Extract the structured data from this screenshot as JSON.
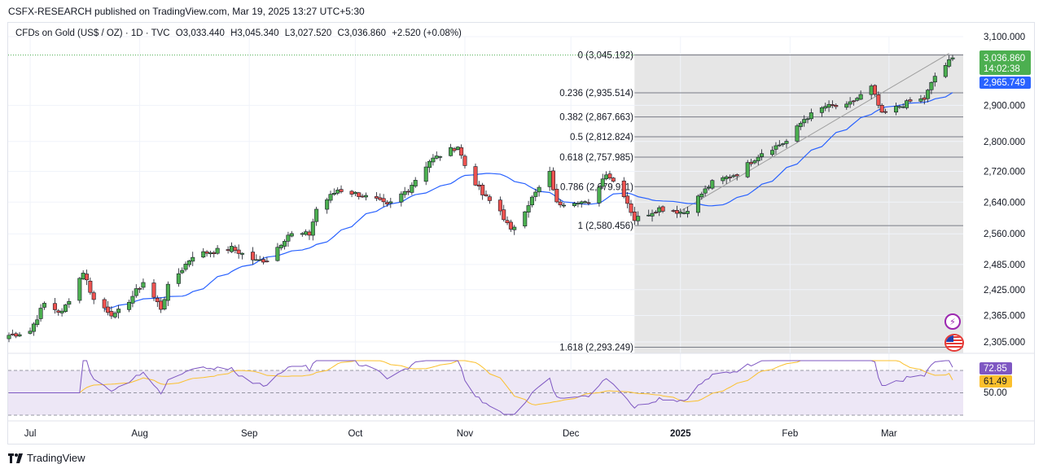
{
  "header": {
    "publisher": "CSFX-RESEARCH published on TradingView.com, Mar 19, 2025 13:27 UTC+5:30"
  },
  "legend": {
    "symbol": "CFDs on Gold (US$ / OZ) · 1D · TVC",
    "open": "O3,033.440",
    "high": "H3,045.340",
    "low": "L3,027.520",
    "close": "C3,036.860",
    "change": "+2.520 (+0.08%)"
  },
  "footer": {
    "brand": "TradingView"
  },
  "colors": {
    "up": "#4caf50",
    "down": "#ef5350",
    "ma": "#2962ff",
    "rsi": "#7e57c2",
    "rsi_ma": "#fbc02d",
    "fib": "#787b86",
    "fib_zone": "#e6e6e6",
    "rsi_band": "#ede7f6"
  },
  "icons": [
    "flash-icon",
    "us-flag-icon",
    "tradingview-logo-icon"
  ],
  "chart_data": {
    "type": "candlestick",
    "symbol": "CFDs on Gold (US$ / OZ)",
    "timeframe": "1D",
    "x_labels": [
      "Jul",
      "Aug",
      "Sep",
      "Oct",
      "Nov",
      "Dec",
      "2025",
      "Feb",
      "Mar"
    ],
    "y_ticks": [
      "3,100.000",
      "2,900.000",
      "2,800.000",
      "2,720.000",
      "2,640.000",
      "2,560.000",
      "2,485.000",
      "2,425.000",
      "2,365.000",
      "2,305.000"
    ],
    "y_tick_values": [
      3100,
      2900,
      2800,
      2720,
      2640,
      2560,
      2485,
      2425,
      2365,
      2305
    ],
    "price_labels": {
      "last_price": "3,036.860",
      "countdown": "14:02:38",
      "ma_value": "2,965.749"
    },
    "fibonacci": [
      {
        "level": "0",
        "price": "3,045.192",
        "value": 3045.192
      },
      {
        "level": "0.236",
        "price": "2,935.514",
        "value": 2935.514
      },
      {
        "level": "0.382",
        "price": "2,867.663",
        "value": 2867.663
      },
      {
        "level": "0.5",
        "price": "2,812.824",
        "value": 2812.824
      },
      {
        "level": "0.618",
        "price": "2,757.985",
        "value": 2757.985
      },
      {
        "level": "0.786",
        "price": "2,679.911",
        "value": 2679.911
      },
      {
        "level": "1",
        "price": "2,580.456",
        "value": 2580.456
      },
      {
        "level": "1.618",
        "price": "2,293.249",
        "value": 2293.249
      }
    ],
    "close_path": [
      [
        "2024-06-25",
        2320
      ],
      [
        "2024-07-01",
        2330
      ],
      [
        "2024-07-05",
        2392
      ],
      [
        "2024-07-10",
        2371
      ],
      [
        "2024-07-16",
        2468
      ],
      [
        "2024-07-19",
        2401
      ],
      [
        "2024-07-25",
        2364
      ],
      [
        "2024-07-30",
        2410
      ],
      [
        "2024-08-02",
        2443
      ],
      [
        "2024-08-07",
        2382
      ],
      [
        "2024-08-09",
        2431
      ],
      [
        "2024-08-16",
        2507
      ],
      [
        "2024-08-20",
        2514
      ],
      [
        "2024-08-27",
        2524
      ],
      [
        "2024-09-03",
        2493
      ],
      [
        "2024-09-06",
        2497
      ],
      [
        "2024-09-12",
        2558
      ],
      [
        "2024-09-18",
        2559
      ],
      [
        "2024-09-20",
        2622
      ],
      [
        "2024-09-26",
        2672
      ],
      [
        "2024-10-01",
        2662
      ],
      [
        "2024-10-07",
        2645
      ],
      [
        "2024-10-10",
        2630
      ],
      [
        "2024-10-16",
        2674
      ],
      [
        "2024-10-22",
        2748
      ],
      [
        "2024-10-30",
        2787
      ],
      [
        "2024-11-01",
        2736
      ],
      [
        "2024-11-06",
        2659
      ],
      [
        "2024-11-11",
        2618
      ],
      [
        "2024-11-14",
        2566
      ],
      [
        "2024-11-20",
        2650
      ],
      [
        "2024-11-25",
        2715
      ],
      [
        "2024-11-27",
        2636
      ],
      [
        "2024-12-03",
        2644
      ],
      [
        "2024-12-06",
        2633
      ],
      [
        "2024-12-11",
        2717
      ],
      [
        "2024-12-16",
        2660
      ],
      [
        "2024-12-19",
        2596
      ],
      [
        "2024-12-26",
        2624
      ],
      [
        "2025-01-02",
        2614
      ],
      [
        "2025-01-10",
        2690
      ],
      [
        "2025-01-17",
        2714
      ],
      [
        "2025-01-24",
        2770
      ],
      [
        "2025-01-31",
        2800
      ],
      [
        "2025-02-05",
        2862
      ],
      [
        "2025-02-11",
        2897
      ],
      [
        "2025-02-17",
        2897
      ],
      [
        "2025-02-24",
        2951
      ],
      [
        "2025-02-27",
        2874
      ],
      [
        "2025-03-03",
        2893
      ],
      [
        "2025-03-07",
        2911
      ],
      [
        "2025-03-11",
        2918
      ],
      [
        "2025-03-14",
        2983
      ],
      [
        "2025-03-19",
        3037
      ]
    ],
    "indicators": {
      "moving_average": {
        "last": 2965.749
      },
      "rsi": {
        "value": 72.85,
        "ma": 61.49,
        "levels": [
          70,
          50,
          30
        ]
      }
    },
    "rsi_labels": {
      "rsi": "72.85",
      "rsi_ma": "61.49",
      "mid": "50.00"
    }
  }
}
